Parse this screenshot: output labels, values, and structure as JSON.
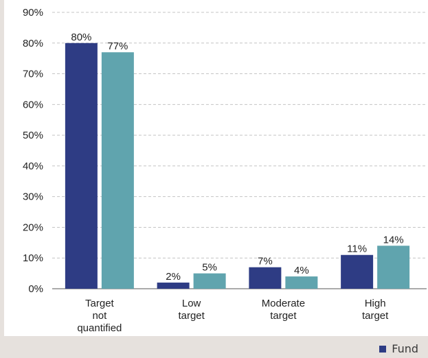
{
  "chart_data": {
    "type": "bar",
    "categories": [
      [
        "Target",
        "not",
        "quantified"
      ],
      [
        "Low",
        "target"
      ],
      [
        "Moderate",
        "target"
      ],
      [
        "High",
        "target"
      ]
    ],
    "series": [
      {
        "name": "Fund",
        "color": "#2e3c84",
        "values": [
          80,
          2,
          7,
          11
        ],
        "labels": [
          "80%",
          "2%",
          "7%",
          "11%"
        ]
      },
      {
        "color": "#60a4ae",
        "values": [
          77,
          5,
          4,
          14
        ],
        "labels": [
          "77%",
          "5%",
          "4%",
          "14%"
        ]
      }
    ],
    "yticks": [
      "0%",
      "10%",
      "20%",
      "30%",
      "40%",
      "50%",
      "60%",
      "70%",
      "80%",
      "90%"
    ],
    "ylim": [
      0,
      90
    ],
    "grid": true,
    "legend": {
      "position": "bottom-right"
    }
  }
}
